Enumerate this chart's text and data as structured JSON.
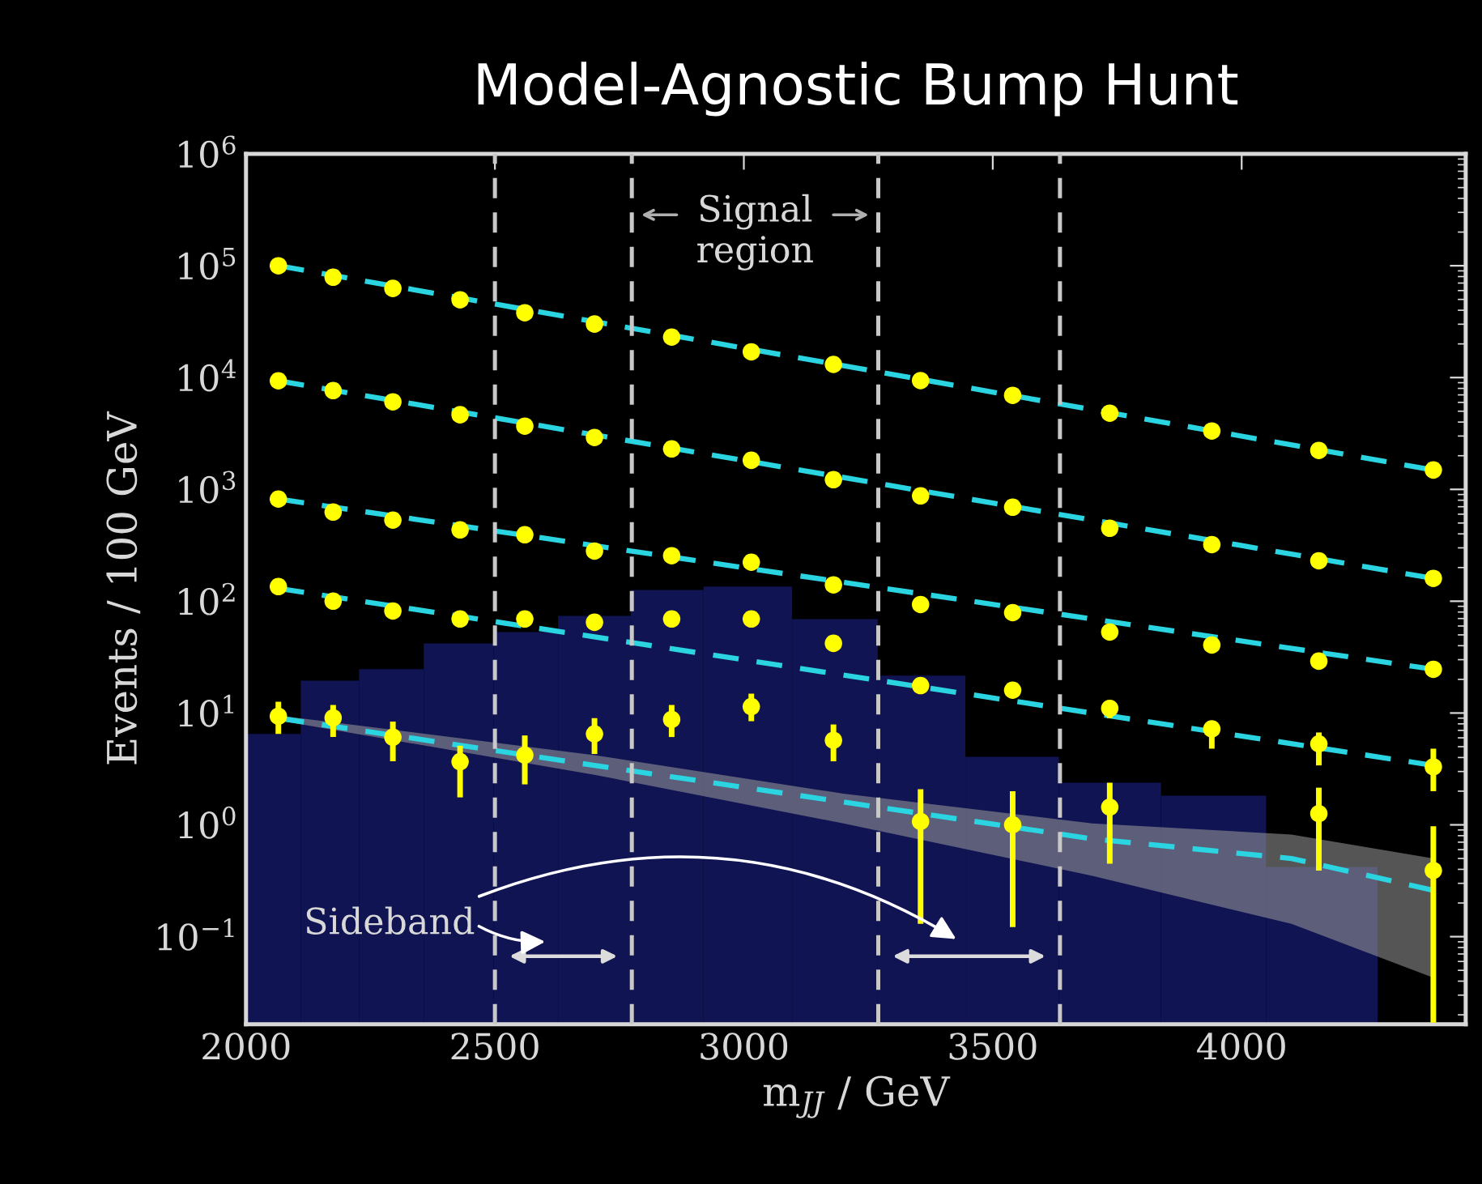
{
  "chart_data": {
    "type": "scatter",
    "title": "Model-Agnostic Bump Hunt",
    "xlabel": "m$_{JJ}$ / GeV",
    "ylabel": "Events / 100 GeV",
    "x": [
      2065,
      2175,
      2295,
      2430,
      2560,
      2700,
      2855,
      3015,
      3180,
      3355,
      3540,
      3735,
      3940,
      4155,
      4385
    ],
    "series": [
      {
        "type": "histogram",
        "color": "#111452",
        "bins": [
          2000,
          2110,
          2227,
          2357,
          2497,
          2627,
          2773,
          2919,
          3097,
          3269,
          3445,
          3633,
          3838,
          4049,
          4273
        ],
        "values": [
          6.5,
          19.5,
          24.7,
          42,
          53,
          74,
          126,
          135,
          69,
          21.6,
          4.06,
          2.38,
          1.82,
          0.42
        ]
      },
      {
        "type": "line",
        "color": "#2ad4e0",
        "line_style": "dashed",
        "marker": "none",
        "x": [
          2065,
          2700,
          3200,
          3700,
          4100,
          4385
        ],
        "values": [
          9.0,
          3.4,
          1.6,
          0.75,
          0.5,
          0.26
        ],
        "lower": [
          8.6,
          2.8,
          1.03,
          0.35,
          0.13,
          0.043
        ],
        "upper": [
          9.5,
          4.2,
          1.9,
          1.03,
          0.82,
          0.5
        ]
      },
      {
        "type": "line",
        "color": "#2ad4e0",
        "line_style": "dashed",
        "x": [
          2065,
          4385
        ],
        "values": [
          130,
          3.4
        ],
        "marker": "none"
      },
      {
        "type": "line",
        "color": "#2ad4e0",
        "line_style": "dashed",
        "x": [
          2065,
          4385
        ],
        "values": [
          820,
          24.6
        ],
        "marker": "none"
      },
      {
        "type": "line",
        "color": "#2ad4e0",
        "line_style": "dashed",
        "x": [
          2065,
          4385
        ],
        "values": [
          9350,
          160
        ],
        "marker": "none"
      },
      {
        "type": "line",
        "color": "#2ad4e0",
        "line_style": "dashed",
        "x": [
          2065,
          4385
        ],
        "values": [
          100000,
          1490
        ],
        "marker": "none"
      },
      {
        "color": "#ffff00",
        "values": [
          9.35,
          9.05,
          6.07,
          3.67,
          4.2,
          6.5,
          8.75,
          11.4,
          5.7,
          1.07,
          1.0,
          1.44,
          null,
          1.26,
          0.39
        ],
        "errors": [
          [
            6.5,
            12.6
          ],
          [
            6.1,
            11.8
          ],
          [
            3.7,
            8.4
          ],
          [
            1.76,
            5.1
          ],
          [
            2.3,
            6.3
          ],
          [
            4.3,
            9.0
          ],
          [
            6.1,
            11.8
          ],
          [
            8.45,
            14.9
          ],
          [
            3.7,
            7.9
          ],
          [
            0.13,
            2.08
          ],
          [
            0.122,
            2.0
          ],
          [
            0.45,
            2.38
          ],
          null,
          [
            0.39,
            2.15
          ],
          [
            0.017,
            0.97
          ]
        ]
      },
      {
        "color": "#ffff00",
        "values": [
          135,
          100,
          81.8,
          69.3,
          69.3,
          64.8,
          69.3,
          69.3,
          42,
          17.6,
          16,
          11,
          7.2,
          5.3,
          3.3
        ],
        "errors": [
          null,
          null,
          null,
          null,
          null,
          null,
          null,
          null,
          null,
          null,
          null,
          [
            9,
            13
          ],
          [
            4.8,
            8.5
          ],
          [
            3.4,
            6.7
          ],
          [
            2.0,
            4.8
          ]
        ]
      },
      {
        "color": "#ffff00",
        "values": [
          819,
          627,
          531,
          434,
          393,
          281,
          255,
          223,
          140,
          93.5,
          79,
          53,
          40.6,
          29.1,
          24.6
        ]
      },
      {
        "color": "#ffff00",
        "values": [
          9350,
          7650,
          6070,
          4650,
          3680,
          2910,
          2300,
          1820,
          1220,
          875,
          693,
          449,
          321,
          230,
          160
        ]
      },
      {
        "color": "#ffff00",
        "values": [
          100000,
          79000,
          62700,
          49600,
          38000,
          30100,
          23000,
          17000,
          13100,
          9400,
          6930,
          4800,
          3330,
          2230,
          1490
        ]
      }
    ],
    "ref_lines": [
      {
        "axis": "x",
        "value": 2500,
        "color": "#c8c8c8",
        "line_style": "dashed"
      },
      {
        "axis": "x",
        "value": 2775,
        "color": "#c8c8c8",
        "line_style": "dashed"
      },
      {
        "axis": "x",
        "value": 3270,
        "color": "#c8c8c8",
        "line_style": "dashed"
      },
      {
        "axis": "x",
        "value": 3635,
        "color": "#c8c8c8",
        "line_style": "dashed"
      }
    ],
    "annotations": [
      "Signal\nregion",
      "Sideband"
    ],
    "log": "y",
    "marker": "circle",
    "grid": false,
    "legend": false,
    "xlim": [
      2000,
      4450
    ],
    "xticks": [
      2000,
      2500,
      3000,
      3500,
      4000
    ],
    "ylim": [
      0.0165,
      1000000
    ],
    "yticks": [
      {
        "value": 0.1,
        "label": "10$^{−1}$"
      },
      {
        "value": 1,
        "label": "10$^{0}$"
      },
      {
        "value": 10,
        "label": "10$^{1}$"
      },
      {
        "value": 100,
        "label": "10$^{2}$"
      },
      {
        "value": 1000,
        "label": "10$^{3}$"
      },
      {
        "value": 10000,
        "label": "10$^{4}$"
      },
      {
        "value": 100000,
        "label": "10$^{5}$"
      },
      {
        "value": 1000000,
        "label": "10$^{6}$"
      }
    ]
  }
}
